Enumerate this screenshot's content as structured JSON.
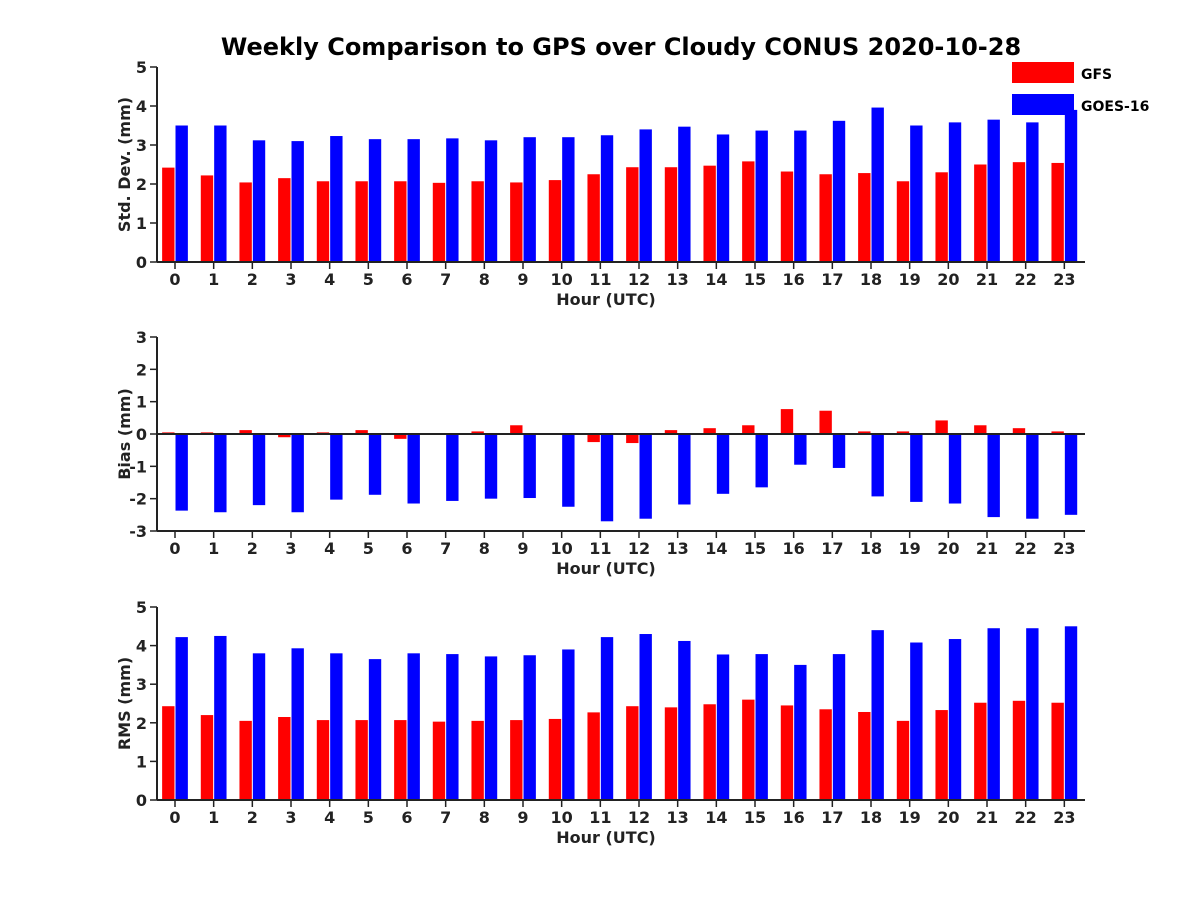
{
  "title": "Weekly Comparison to GPS over Cloudy CONUS 2020-10-28",
  "legend": {
    "placement": "top-right, outside plot",
    "entries": [
      "GFS",
      "GOES-16"
    ]
  },
  "colors": {
    "GFS": "#ff0000",
    "GOES-16": "#0000ff",
    "axis": "#222222"
  },
  "chart_data": [
    {
      "type": "bar",
      "title": "Weekly Comparison to GPS over Cloudy CONUS 2020-10-28",
      "xlabel": "Hour (UTC)",
      "ylabel": "Std. Dev. (mm)",
      "ylim": [
        0,
        5
      ],
      "yticks": [
        0,
        1,
        2,
        3,
        4,
        5
      ],
      "grid": false,
      "categories": [
        "0",
        "1",
        "2",
        "3",
        "4",
        "5",
        "6",
        "7",
        "8",
        "9",
        "10",
        "11",
        "12",
        "13",
        "14",
        "15",
        "16",
        "17",
        "18",
        "19",
        "20",
        "21",
        "22",
        "23"
      ],
      "series": [
        {
          "name": "GFS",
          "values": [
            2.42,
            2.22,
            2.04,
            2.15,
            2.07,
            2.07,
            2.07,
            2.03,
            2.07,
            2.04,
            2.1,
            2.25,
            2.43,
            2.43,
            2.47,
            2.58,
            2.32,
            2.25,
            2.28,
            2.07,
            2.3,
            2.5,
            2.56,
            2.54
          ]
        },
        {
          "name": "GOES-16",
          "values": [
            3.5,
            3.5,
            3.12,
            3.1,
            3.23,
            3.15,
            3.15,
            3.17,
            3.12,
            3.2,
            3.2,
            3.25,
            3.4,
            3.47,
            3.27,
            3.37,
            3.37,
            3.62,
            3.96,
            3.5,
            3.58,
            3.65,
            3.58,
            3.9
          ]
        }
      ]
    },
    {
      "type": "bar",
      "title": "",
      "xlabel": "Hour (UTC)",
      "ylabel": "Bias (mm)",
      "ylim": [
        -3,
        3
      ],
      "yticks": [
        -3,
        -2,
        -1,
        0,
        1,
        2,
        3
      ],
      "zero_line": true,
      "grid": false,
      "categories": [
        "0",
        "1",
        "2",
        "3",
        "4",
        "5",
        "6",
        "7",
        "8",
        "9",
        "10",
        "11",
        "12",
        "13",
        "14",
        "15",
        "16",
        "17",
        "18",
        "19",
        "20",
        "21",
        "22",
        "23"
      ],
      "series": [
        {
          "name": "GFS",
          "values": [
            0.05,
            0.05,
            0.12,
            -0.1,
            0.05,
            0.12,
            -0.15,
            0.03,
            0.08,
            0.27,
            0.03,
            -0.25,
            -0.28,
            0.12,
            0.18,
            0.27,
            0.77,
            0.72,
            0.08,
            0.08,
            0.42,
            0.27,
            0.18,
            0.08
          ]
        },
        {
          "name": "GOES-16",
          "values": [
            -2.37,
            -2.42,
            -2.2,
            -2.42,
            -2.03,
            -1.88,
            -2.15,
            -2.07,
            -2.0,
            -1.98,
            -2.25,
            -2.7,
            -2.62,
            -2.18,
            -1.85,
            -1.65,
            -0.95,
            -1.05,
            -1.93,
            -2.1,
            -2.15,
            -2.57,
            -2.62,
            -2.5
          ]
        }
      ]
    },
    {
      "type": "bar",
      "title": "",
      "xlabel": "Hour (UTC)",
      "ylabel": "RMS (mm)",
      "ylim": [
        0,
        5
      ],
      "yticks": [
        0,
        1,
        2,
        3,
        4,
        5
      ],
      "grid": false,
      "categories": [
        "0",
        "1",
        "2",
        "3",
        "4",
        "5",
        "6",
        "7",
        "8",
        "9",
        "10",
        "11",
        "12",
        "13",
        "14",
        "15",
        "16",
        "17",
        "18",
        "19",
        "20",
        "21",
        "22",
        "23"
      ],
      "series": [
        {
          "name": "GFS",
          "values": [
            2.43,
            2.2,
            2.05,
            2.15,
            2.07,
            2.07,
            2.07,
            2.03,
            2.05,
            2.07,
            2.1,
            2.27,
            2.43,
            2.4,
            2.48,
            2.6,
            2.45,
            2.35,
            2.28,
            2.05,
            2.33,
            2.52,
            2.57,
            2.52
          ]
        },
        {
          "name": "GOES-16",
          "values": [
            4.22,
            4.25,
            3.8,
            3.93,
            3.8,
            3.65,
            3.8,
            3.78,
            3.72,
            3.75,
            3.9,
            4.22,
            4.3,
            4.12,
            3.77,
            3.78,
            3.5,
            3.78,
            4.4,
            4.08,
            4.17,
            4.45,
            4.45,
            4.5
          ]
        }
      ]
    }
  ]
}
